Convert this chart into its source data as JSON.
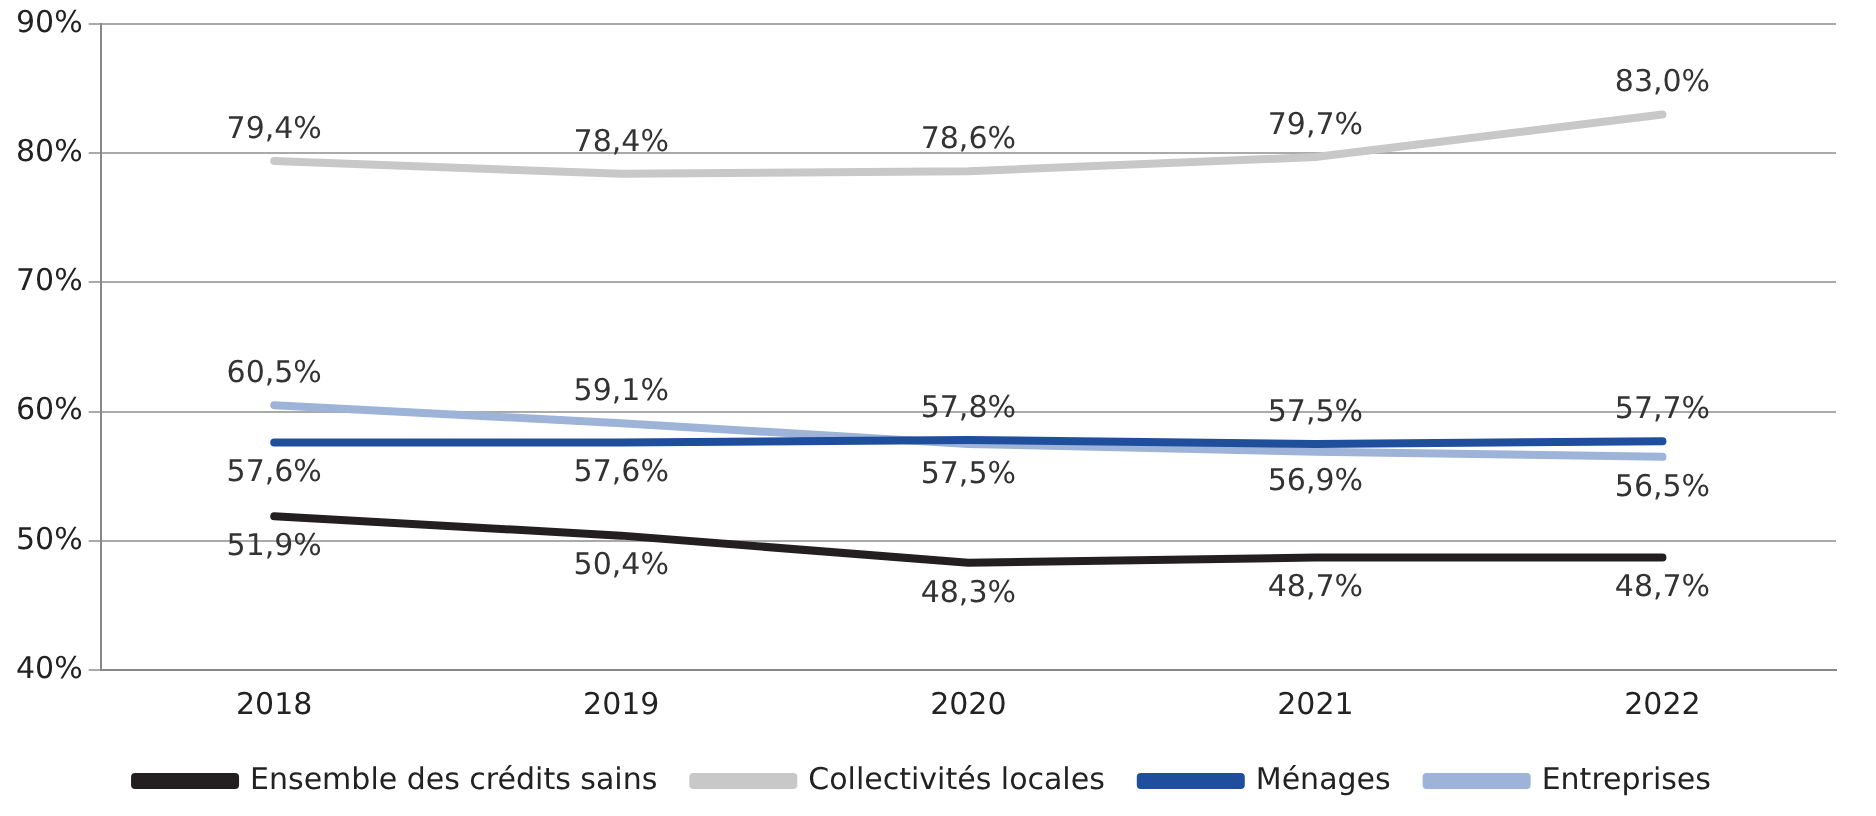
{
  "chart_data": {
    "type": "line",
    "categories": [
      "2018",
      "2019",
      "2020",
      "2021",
      "2022"
    ],
    "ylim": [
      40,
      90
    ],
    "yticks": [
      {
        "value": 40,
        "label": "40%"
      },
      {
        "value": 50,
        "label": "50%"
      },
      {
        "value": 60,
        "label": "60%"
      },
      {
        "value": 70,
        "label": "70%"
      },
      {
        "value": 80,
        "label": "80%"
      },
      {
        "value": 90,
        "label": "90%"
      }
    ],
    "grid": "y",
    "legend": "bottom",
    "marker": "none",
    "line_style": "solid",
    "series": [
      {
        "name": "Ensemble des crédits sains",
        "color": "#231f20",
        "values": [
          51.9,
          50.4,
          48.3,
          48.7,
          48.7
        ],
        "value_labels": [
          "51,9%",
          "50,4%",
          "48,3%",
          "48,7%",
          "48,7%"
        ]
      },
      {
        "name": "Collectivités locales",
        "color": "#c8c8c8",
        "values": [
          79.4,
          78.4,
          78.6,
          79.7,
          83.0
        ],
        "value_labels": [
          "79,4%",
          "78,4%",
          "78,6%",
          "79,7%",
          "83,0%"
        ]
      },
      {
        "name": "Ménages",
        "color": "#1f4e9c",
        "values": [
          57.6,
          57.6,
          57.8,
          57.5,
          57.7
        ],
        "value_labels": [
          "57,6%",
          "57,6%",
          "57,8%",
          "57,5%",
          "57,7%"
        ]
      },
      {
        "name": "Entreprises",
        "color": "#9db3d8",
        "values": [
          60.5,
          59.1,
          57.5,
          56.9,
          56.5
        ],
        "value_labels": [
          "60,5%",
          "59,1%",
          "57,5%",
          "56,9%",
          "56,5%"
        ]
      }
    ]
  }
}
